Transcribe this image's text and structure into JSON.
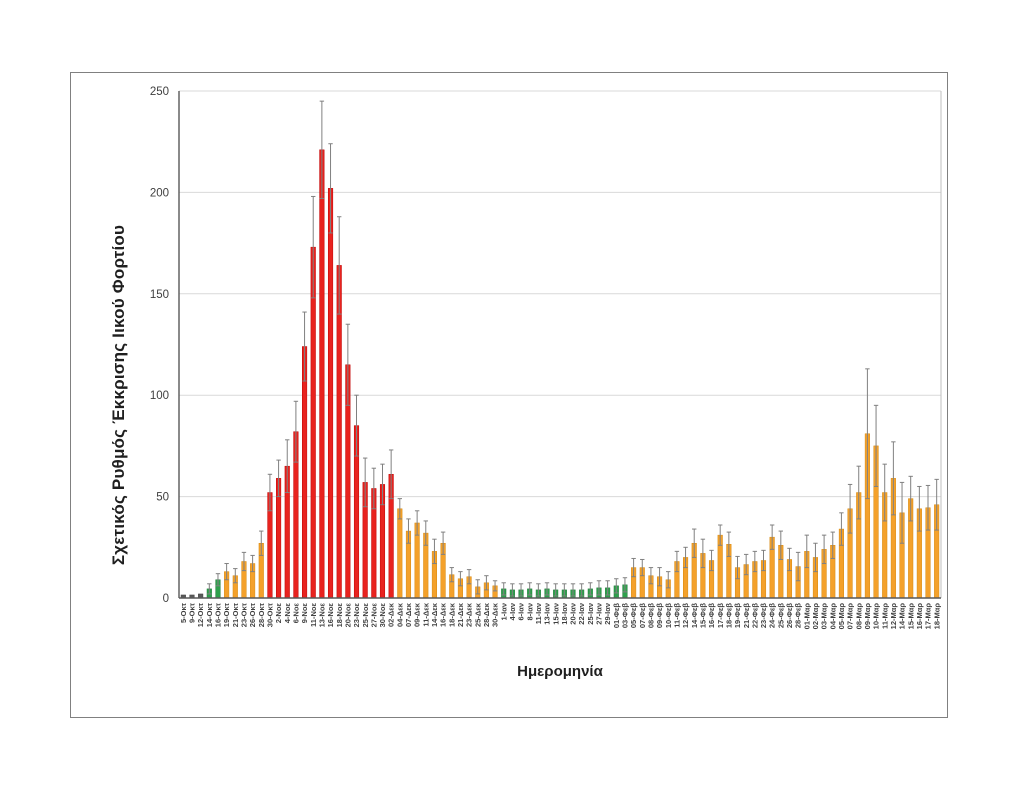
{
  "figure": {
    "background": "#FFFFFF",
    "border_color": "#808080"
  },
  "chart_data": {
    "type": "bar",
    "title": "",
    "xlabel": "Ημερομηνία",
    "ylabel": "Σχετικός Ρυθμός Έκκρισης Ιικού Φορτίου",
    "ylim": [
      0,
      250
    ],
    "yticks": [
      0,
      50,
      100,
      150,
      200,
      250
    ],
    "grid": true,
    "legend": "none",
    "error_bars": true,
    "categories": [
      "5-Οκτ",
      "9-Οκτ",
      "12-Οκτ",
      "14-Οκτ",
      "16-Οκτ",
      "19-Οκτ",
      "21-Οκτ",
      "23-Οκτ",
      "26-Οκτ",
      "28-Οκτ",
      "30-Οκτ",
      "2-Νοε",
      "4-Νοε",
      "6-Νοε",
      "9-Νοε",
      "11-Νοε",
      "13-Νοε",
      "16-Νοε",
      "18-Νοε",
      "20-Νοε",
      "23-Νοε",
      "25-Νοε",
      "27-Νοε",
      "30-Νοε",
      "02-Δεκ",
      "04-Δεκ",
      "07-Δεκ",
      "09-Δεκ",
      "11-Δεκ",
      "14-Δεκ",
      "16-Δεκ",
      "18-Δεκ",
      "21-Δεκ",
      "23-Δεκ",
      "25-Δεκ",
      "28-Δεκ",
      "30-Δεκ",
      "1-Ιαν",
      "4-Ιαν",
      "6-Ιαν",
      "8-Ιαν",
      "11-Ιαν",
      "13-Ιαν",
      "15-Ιαν",
      "18-Ιαν",
      "20-Ιαν",
      "22-Ιαν",
      "25-Ιαν",
      "27-Ιαν",
      "29-Ιαν",
      "01-Φεβ",
      "03-Φεβ",
      "05-Φεβ",
      "07-Φεβ",
      "08-Φεβ",
      "09-Φεβ",
      "10-Φεβ",
      "11-Φεβ",
      "12-Φεβ",
      "14-Φεβ",
      "15-Φεβ",
      "16-Φεβ",
      "17-Φεβ",
      "18-Φεβ",
      "19-Φεβ",
      "21-Φεβ",
      "22-Φεβ",
      "23-Φεβ",
      "24-Φεβ",
      "25-Φεβ",
      "26-Φεβ",
      "28-Φεβ",
      "01-Μαρ",
      "02-Μαρ",
      "03-Μαρ",
      "04-Μαρ",
      "05-Μαρ",
      "07-Μαρ",
      "08-Μαρ",
      "09-Μαρ",
      "10-Μαρ",
      "11-Μαρ",
      "12-Μαρ",
      "14-Μαρ",
      "15-Μαρ",
      "16-Μαρ",
      "17-Μαρ",
      "18-Μαρ"
    ],
    "values": [
      1.5,
      1.5,
      2,
      4.5,
      9,
      13,
      11,
      18,
      17,
      27,
      52,
      59,
      65,
      82,
      124,
      173,
      221,
      202,
      164,
      115,
      85,
      57,
      54,
      56,
      61,
      44,
      33,
      37,
      32,
      23,
      27,
      11.5,
      9.5,
      10.5,
      5.5,
      7.5,
      6,
      4.5,
      4,
      4,
      4.5,
      4,
      4.5,
      4,
      4,
      4,
      4,
      4.5,
      5,
      5,
      6,
      6.5,
      15,
      15,
      11,
      10.5,
      9,
      18,
      20,
      27,
      22,
      18.5,
      31,
      26.5,
      15,
      16.5,
      18,
      18.5,
      30,
      26,
      19,
      15.5,
      23,
      20,
      24,
      26,
      34,
      44,
      52,
      81,
      75,
      52,
      59,
      42,
      49,
      44,
      44.5,
      46
    ],
    "error_up": [
      0,
      0,
      0,
      2.5,
      3,
      4,
      3.5,
      4.5,
      4,
      6,
      9,
      9,
      13,
      15,
      17,
      25,
      24,
      22,
      24,
      20,
      15,
      12,
      10,
      10,
      12,
      5,
      6,
      6,
      6,
      6,
      5.5,
      3.5,
      3.5,
      3.5,
      3.5,
      3.5,
      2.5,
      3,
      3,
      3,
      3,
      3,
      3,
      3,
      3,
      3,
      3,
      3,
      3.5,
      3.5,
      3.5,
      3.5,
      4.5,
      4,
      4,
      4.5,
      4,
      5,
      5,
      7,
      7,
      5,
      5,
      6,
      5.5,
      5,
      5,
      5,
      6,
      7,
      5.5,
      7,
      8,
      7,
      7,
      6.5,
      8,
      12,
      13,
      32,
      20,
      14,
      18,
      15,
      11,
      11,
      11,
      12.5
    ],
    "point_colors": [
      "gray",
      "gray",
      "gray",
      "green",
      "green",
      "orange",
      "orange",
      "orange",
      "orange",
      "orange",
      "red",
      "red",
      "red",
      "red",
      "red",
      "red",
      "red",
      "red",
      "red",
      "red",
      "red",
      "red",
      "red",
      "red",
      "red",
      "orange",
      "orange",
      "orange",
      "orange",
      "orange",
      "orange",
      "orange",
      "orange",
      "orange",
      "orange",
      "orange",
      "orange",
      "green",
      "green",
      "green",
      "green",
      "green",
      "green",
      "green",
      "green",
      "green",
      "green",
      "green",
      "green",
      "green",
      "green",
      "green",
      "orange",
      "orange",
      "orange",
      "orange",
      "orange",
      "orange",
      "orange",
      "orange",
      "orange",
      "orange",
      "orange",
      "orange",
      "orange",
      "orange",
      "orange",
      "orange",
      "orange",
      "orange",
      "orange",
      "orange",
      "orange",
      "orange",
      "orange",
      "orange",
      "orange",
      "orange",
      "orange",
      "orange",
      "orange",
      "orange",
      "orange",
      "orange",
      "orange",
      "orange",
      "orange",
      "orange"
    ],
    "palette": {
      "gray": "#595959",
      "green": "#2EA04C",
      "orange": "#F4A12B",
      "red": "#E8231F"
    },
    "palette_border": {
      "gray": "#404040",
      "green": "#1F7A38",
      "orange": "#D68910",
      "red": "#C00000"
    },
    "error_bar_color": "#808080",
    "gridline_color": "#D9D9D9",
    "axis_color": "#595959",
    "tick_text_color": "#3F3F3F"
  }
}
